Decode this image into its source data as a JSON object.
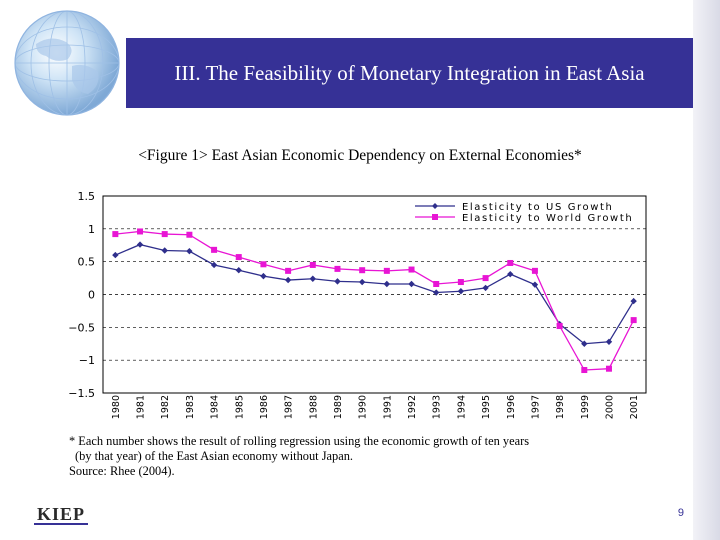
{
  "slide": {
    "title": "III. The Feasibility of Monetary Integration in East Asia",
    "figure_caption": "<Figure 1> East Asian Economic Dependency on External Economies*",
    "footnote_line1": "* Each number shows the result of rolling regression using the economic growth of ten years",
    "footnote_line2": "(by that year) of the East Asian economy without Japan.",
    "source": "Source: Rhee (2004).",
    "logo_text": "KIEP",
    "page_number": "9"
  },
  "colors": {
    "title_bar": "#363196",
    "us_series": "#2f2f8c",
    "world_series": "#e815d4"
  },
  "chart_data": {
    "type": "line",
    "x": [
      "1980",
      "1981",
      "1982",
      "1983",
      "1984",
      "1985",
      "1986",
      "1987",
      "1988",
      "1989",
      "1990",
      "1991",
      "1992",
      "1993",
      "1994",
      "1995",
      "1996",
      "1997",
      "1998",
      "1999",
      "2000",
      "2001"
    ],
    "yticks": [
      "1.5",
      "1",
      "0.5",
      "0",
      "-0.5",
      "-1",
      "-1.5"
    ],
    "ylim": [
      -1.5,
      1.5
    ],
    "grid": "dashed horizontal",
    "legend_position": "top-right",
    "series": [
      {
        "name": "Elasticity to US Growth",
        "color": "#2f2f8c",
        "marker": "diamond",
        "values": [
          0.6,
          0.76,
          0.67,
          0.66,
          0.45,
          0.37,
          0.28,
          0.22,
          0.24,
          0.2,
          0.19,
          0.16,
          0.16,
          0.03,
          0.05,
          0.1,
          0.31,
          0.15,
          -0.45,
          -0.75,
          -0.72,
          -0.1
        ]
      },
      {
        "name": "Elasticity to World Growth",
        "color": "#e815d4",
        "marker": "square",
        "values": [
          0.92,
          0.96,
          0.92,
          0.91,
          0.68,
          0.57,
          0.46,
          0.36,
          0.45,
          0.39,
          0.37,
          0.36,
          0.38,
          0.16,
          0.19,
          0.25,
          0.48,
          0.36,
          -0.48,
          -1.15,
          -1.13,
          -0.39
        ]
      }
    ]
  }
}
